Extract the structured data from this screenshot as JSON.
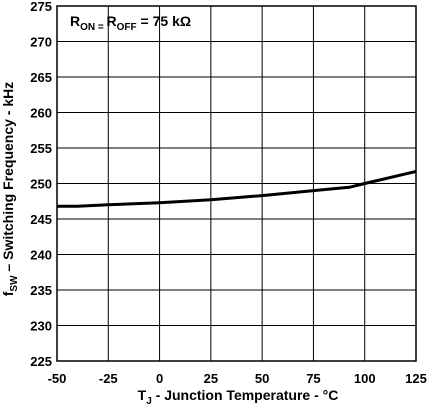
{
  "chart_data": {
    "type": "line",
    "title": "",
    "xlabel": {
      "main": "T",
      "sub": "J",
      "rest": "  -  Junction Temperature - °C"
    },
    "ylabel": {
      "main": "f",
      "sub": "SW",
      "rest": " – Switching Frequency - kHz"
    },
    "annotation": {
      "r1": "R",
      "r1_sub": "ON",
      "eq1": " = ",
      "r2": "R",
      "r2_sub": "OFF",
      "rest": " = 75 kΩ"
    },
    "xlim": [
      -50,
      125
    ],
    "ylim": [
      225,
      275
    ],
    "x_ticks": [
      "-50",
      "-25",
      "0",
      "25",
      "50",
      "75",
      "100",
      "125"
    ],
    "y_ticks": [
      "225",
      "230",
      "235",
      "240",
      "245",
      "250",
      "255",
      "260",
      "265",
      "270",
      "275"
    ],
    "grid": true,
    "series": [
      {
        "x": [
          -50,
          -40,
          -25,
          0,
          25,
          50,
          75,
          93,
          100,
          125
        ],
        "y": [
          246.8,
          246.8,
          247.0,
          247.3,
          247.7,
          248.3,
          249.0,
          249.5,
          250.0,
          251.7
        ]
      }
    ]
  }
}
